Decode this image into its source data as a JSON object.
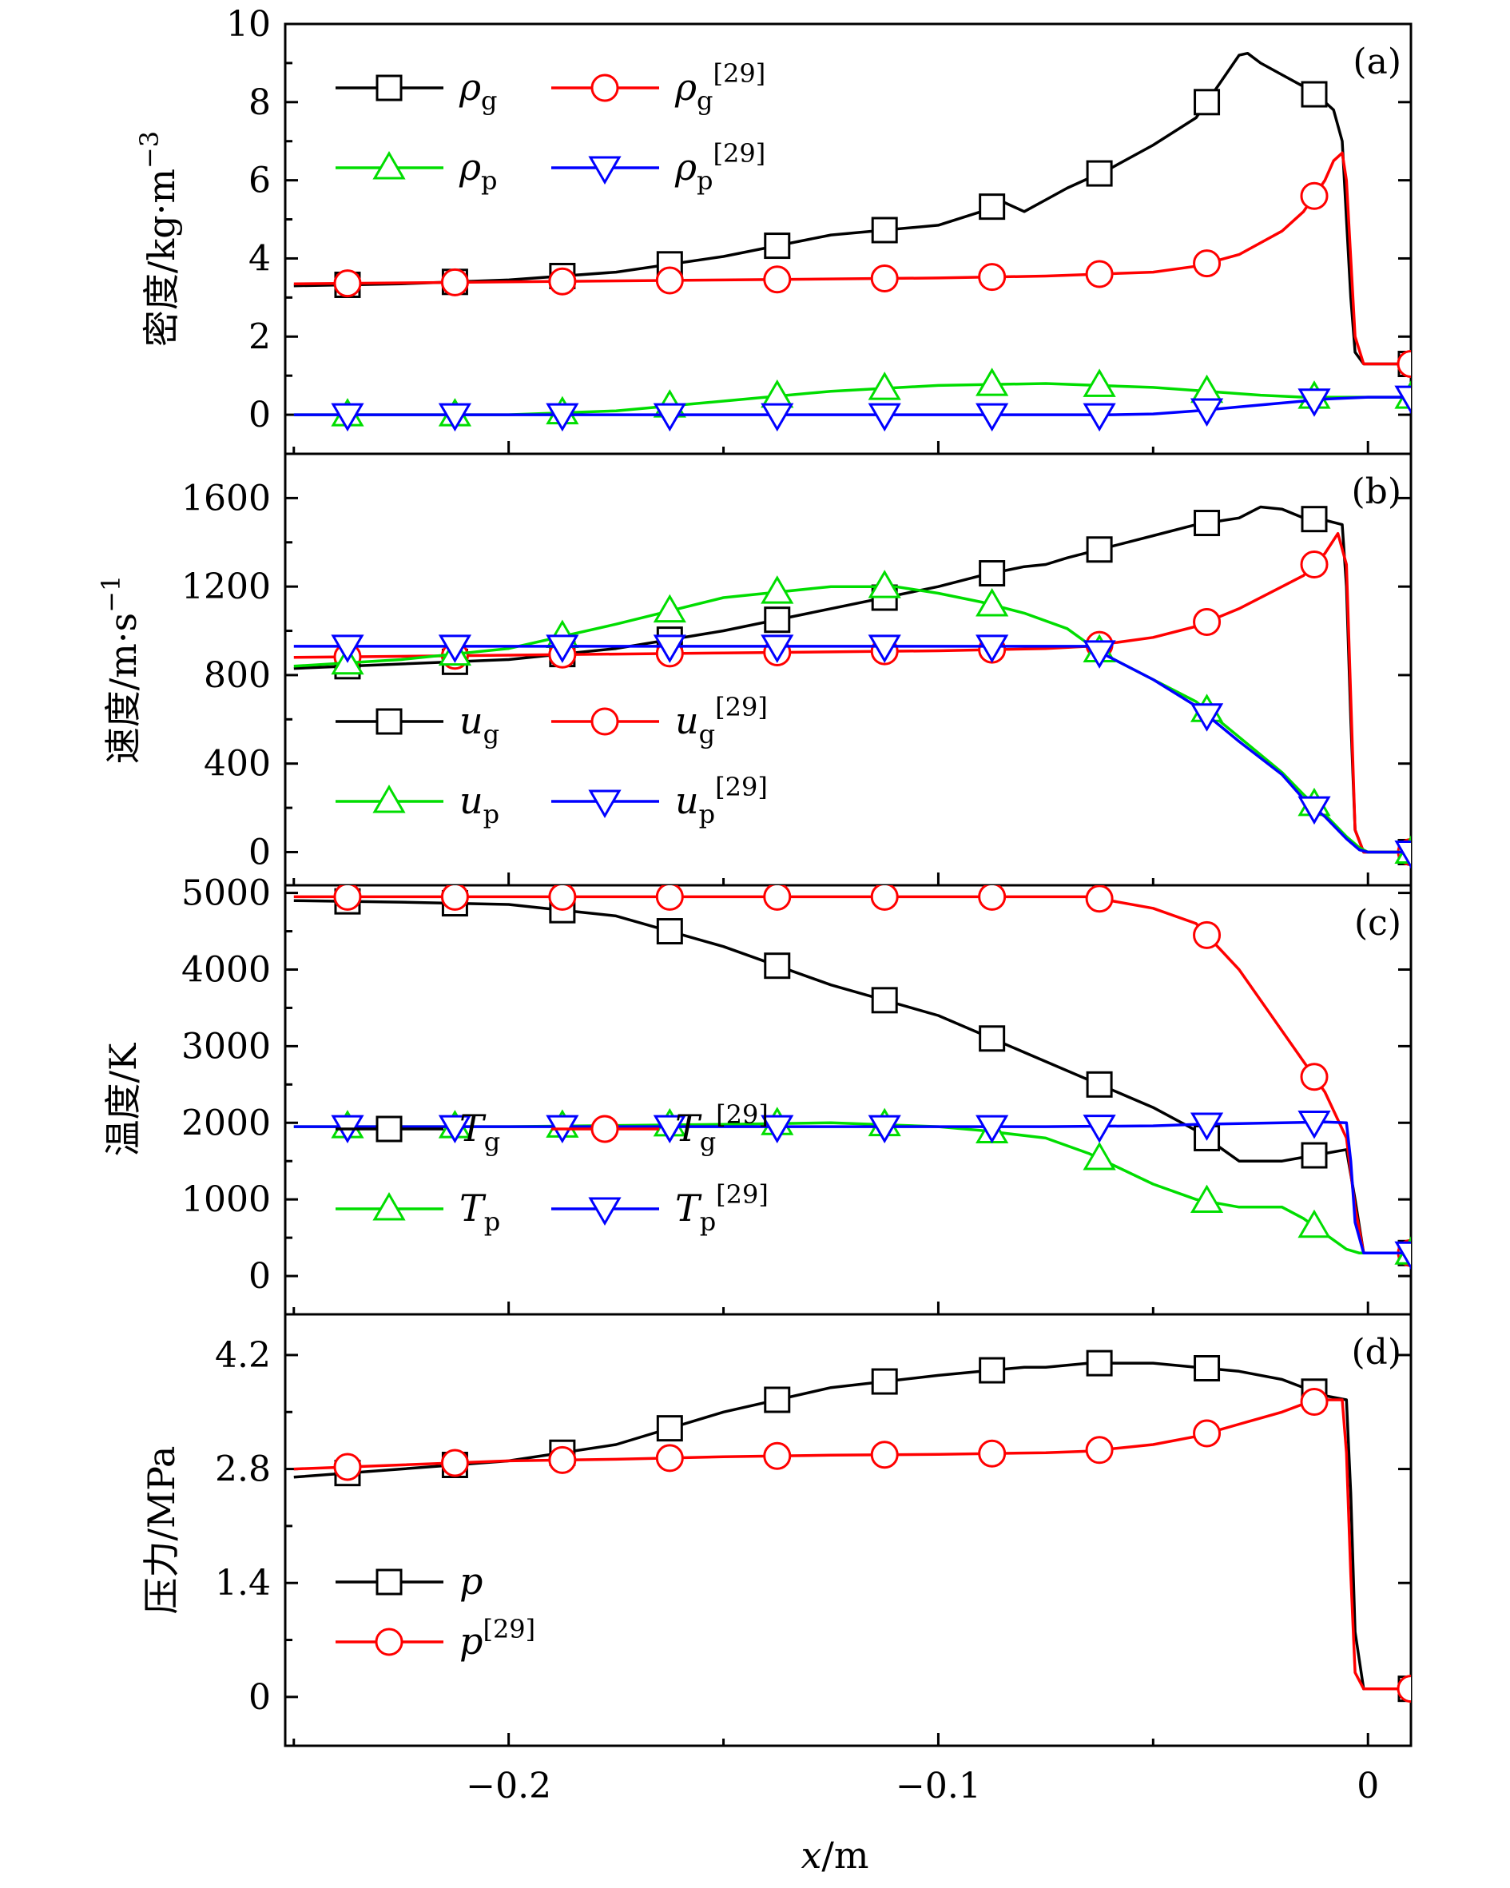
{
  "chart_data": [
    {
      "type": "line",
      "panel_label": "(a)",
      "ylabel": "密度/kg·m",
      "ylabel_exponent": "−3",
      "ylim": [
        -1,
        10
      ],
      "yticks": [
        0,
        2,
        4,
        6,
        8,
        10
      ],
      "ytick_labels": [
        "0",
        "2",
        "4",
        "6",
        "8",
        "10"
      ],
      "legend": {
        "placement": "top-left",
        "columns": 2
      },
      "series": [
        {
          "name": "ρ",
          "subscript": "g",
          "superscript": "",
          "color": "#000000",
          "marker": "square",
          "x": [
            -0.25,
            -0.225,
            -0.2,
            -0.175,
            -0.15,
            -0.125,
            -0.1,
            -0.09,
            -0.085,
            -0.08,
            -0.075,
            -0.07,
            -0.06,
            -0.05,
            -0.04,
            -0.035,
            -0.03,
            -0.028,
            -0.025,
            -0.02,
            -0.015,
            -0.01,
            -0.008,
            -0.006,
            -0.005,
            -0.004,
            -0.003,
            -0.001,
            0,
            0.01
          ],
          "y": [
            3.3,
            3.35,
            3.45,
            3.65,
            4.05,
            4.6,
            4.85,
            5.2,
            5.45,
            5.2,
            5.5,
            5.8,
            6.3,
            6.9,
            7.6,
            8.4,
            9.2,
            9.25,
            9.0,
            8.7,
            8.4,
            8.0,
            7.8,
            7.0,
            5.0,
            3.0,
            1.6,
            1.3,
            1.3,
            1.3
          ]
        },
        {
          "name": "ρ",
          "subscript": "g",
          "superscript": "[29]",
          "color": "#ff0000",
          "marker": "circle",
          "x": [
            -0.25,
            -0.2,
            -0.15,
            -0.1,
            -0.075,
            -0.05,
            -0.04,
            -0.03,
            -0.02,
            -0.015,
            -0.01,
            -0.008,
            -0.006,
            -0.005,
            -0.004,
            -0.003,
            -0.001,
            0,
            0.01
          ],
          "y": [
            3.35,
            3.4,
            3.45,
            3.5,
            3.55,
            3.65,
            3.8,
            4.1,
            4.7,
            5.2,
            6.0,
            6.5,
            6.7,
            6.0,
            4.0,
            2.0,
            1.3,
            1.3,
            1.3
          ]
        },
        {
          "name": "ρ",
          "subscript": "p",
          "superscript": "",
          "color": "#00dd00",
          "marker": "triangle-up",
          "x": [
            -0.25,
            -0.2,
            -0.175,
            -0.15,
            -0.125,
            -0.1,
            -0.075,
            -0.05,
            -0.025,
            -0.015,
            0,
            0.01
          ],
          "y": [
            0,
            0,
            0.1,
            0.35,
            0.6,
            0.75,
            0.8,
            0.7,
            0.5,
            0.45,
            0.45,
            0.45
          ]
        },
        {
          "name": "ρ",
          "subscript": "p",
          "superscript": "[29]",
          "color": "#0000ff",
          "marker": "triangle-down",
          "x": [
            -0.25,
            -0.2,
            -0.15,
            -0.1,
            -0.075,
            -0.06,
            -0.05,
            -0.04,
            -0.03,
            -0.02,
            -0.01,
            0,
            0.01
          ],
          "y": [
            0,
            0,
            0,
            0,
            0,
            0,
            0.02,
            0.1,
            0.2,
            0.3,
            0.4,
            0.45,
            0.45
          ]
        }
      ]
    },
    {
      "type": "line",
      "panel_label": "(b)",
      "ylabel": "速度/m·s",
      "ylabel_exponent": "−1",
      "ylim": [
        -150,
        1800
      ],
      "yticks": [
        0,
        400,
        800,
        1200,
        1600
      ],
      "ytick_labels": [
        "0",
        "400",
        "800",
        "1200",
        "1600"
      ],
      "legend": {
        "placement": "bottom-left",
        "columns": 2
      },
      "series": [
        {
          "name": "u",
          "subscript": "g",
          "superscript": "",
          "color": "#000000",
          "marker": "square",
          "x": [
            -0.25,
            -0.2,
            -0.175,
            -0.15,
            -0.125,
            -0.1,
            -0.09,
            -0.08,
            -0.075,
            -0.07,
            -0.06,
            -0.05,
            -0.04,
            -0.03,
            -0.025,
            -0.02,
            -0.015,
            -0.01,
            -0.006,
            -0.005,
            -0.004,
            -0.003,
            -0.001,
            0,
            0.01
          ],
          "y": [
            830,
            870,
            920,
            1000,
            1100,
            1200,
            1250,
            1290,
            1300,
            1330,
            1380,
            1430,
            1480,
            1510,
            1560,
            1550,
            1510,
            1500,
            1480,
            1200,
            600,
            100,
            0,
            0,
            0
          ]
        },
        {
          "name": "u",
          "subscript": "g",
          "superscript": "[29]",
          "color": "#ff0000",
          "marker": "circle",
          "x": [
            -0.25,
            -0.2,
            -0.15,
            -0.1,
            -0.075,
            -0.065,
            -0.05,
            -0.04,
            -0.03,
            -0.02,
            -0.015,
            -0.01,
            -0.007,
            -0.005,
            -0.004,
            -0.003,
            -0.001,
            0,
            0.01
          ],
          "y": [
            880,
            890,
            900,
            910,
            920,
            930,
            970,
            1020,
            1100,
            1200,
            1250,
            1350,
            1440,
            1300,
            700,
            100,
            0,
            0,
            0
          ]
        },
        {
          "name": "u",
          "subscript": "p",
          "superscript": "",
          "color": "#00dd00",
          "marker": "triangle-up",
          "x": [
            -0.25,
            -0.225,
            -0.2,
            -0.175,
            -0.15,
            -0.125,
            -0.11,
            -0.1,
            -0.09,
            -0.08,
            -0.07,
            -0.065,
            -0.06,
            -0.05,
            -0.04,
            -0.03,
            -0.02,
            -0.015,
            -0.01,
            -0.005,
            -0.002,
            0,
            0.01
          ],
          "y": [
            840,
            870,
            920,
            1030,
            1150,
            1200,
            1200,
            1170,
            1130,
            1080,
            1010,
            940,
            880,
            780,
            680,
            520,
            360,
            260,
            170,
            70,
            20,
            0,
            0
          ]
        },
        {
          "name": "u",
          "subscript": "p",
          "superscript": "[29]",
          "color": "#0000ff",
          "marker": "triangle-down",
          "x": [
            -0.25,
            -0.2,
            -0.15,
            -0.1,
            -0.075,
            -0.065,
            -0.06,
            -0.05,
            -0.04,
            -0.03,
            -0.02,
            -0.015,
            -0.01,
            -0.005,
            -0.002,
            0,
            0.01
          ],
          "y": [
            930,
            930,
            930,
            930,
            930,
            930,
            880,
            780,
            660,
            500,
            350,
            240,
            160,
            60,
            10,
            0,
            0
          ]
        }
      ]
    },
    {
      "type": "line",
      "panel_label": "(c)",
      "ylabel": "温度/K",
      "ylabel_exponent": "",
      "ylim": [
        -500,
        5100
      ],
      "yticks": [
        0,
        1000,
        2000,
        3000,
        4000,
        5000
      ],
      "ytick_labels": [
        "0",
        "1000",
        "2000",
        "3000",
        "4000",
        "5000"
      ],
      "legend": {
        "placement": "bottom-left",
        "columns": 2
      },
      "series": [
        {
          "name": "T",
          "subscript": "g",
          "superscript": "",
          "color": "#000000",
          "marker": "square",
          "x": [
            -0.25,
            -0.225,
            -0.2,
            -0.175,
            -0.15,
            -0.125,
            -0.1,
            -0.075,
            -0.05,
            -0.04,
            -0.03,
            -0.025,
            -0.02,
            -0.015,
            -0.01,
            -0.005,
            -0.003,
            -0.001,
            0,
            0.01
          ],
          "y": [
            4900,
            4880,
            4850,
            4700,
            4300,
            3800,
            3400,
            2800,
            2200,
            1900,
            1500,
            1500,
            1500,
            1550,
            1600,
            1650,
            1000,
            300,
            300,
            300
          ]
        },
        {
          "name": "T",
          "subscript": "g",
          "superscript": "[29]",
          "color": "#ff0000",
          "marker": "circle",
          "x": [
            -0.25,
            -0.2,
            -0.15,
            -0.1,
            -0.075,
            -0.065,
            -0.05,
            -0.04,
            -0.03,
            -0.02,
            -0.015,
            -0.01,
            -0.005,
            -0.003,
            -0.001,
            0,
            0.01
          ],
          "y": [
            4950,
            4950,
            4950,
            4950,
            4950,
            4950,
            4800,
            4600,
            4000,
            3200,
            2800,
            2400,
            1800,
            900,
            300,
            300,
            300
          ]
        },
        {
          "name": "T",
          "subscript": "p",
          "superscript": "",
          "color": "#00dd00",
          "marker": "triangle-up",
          "x": [
            -0.25,
            -0.2,
            -0.15,
            -0.125,
            -0.1,
            -0.09,
            -0.075,
            -0.065,
            -0.05,
            -0.04,
            -0.03,
            -0.02,
            -0.015,
            -0.01,
            -0.005,
            -0.002,
            0,
            0.01
          ],
          "y": [
            1950,
            1950,
            1980,
            2000,
            1950,
            1900,
            1800,
            1600,
            1200,
            1000,
            900,
            900,
            750,
            550,
            350,
            300,
            300,
            300
          ]
        },
        {
          "name": "T",
          "subscript": "p",
          "superscript": "[29]",
          "color": "#0000ff",
          "marker": "triangle-down",
          "x": [
            -0.25,
            -0.2,
            -0.15,
            -0.125,
            -0.1,
            -0.075,
            -0.05,
            -0.04,
            -0.02,
            -0.01,
            -0.005,
            -0.004,
            -0.003,
            -0.001,
            0,
            0.01
          ],
          "y": [
            1950,
            1950,
            1950,
            1950,
            1950,
            1950,
            1960,
            1980,
            2000,
            2010,
            2000,
            1500,
            700,
            300,
            300,
            300
          ]
        }
      ]
    },
    {
      "type": "line",
      "panel_label": "(d)",
      "ylabel": "压力/MPa",
      "ylabel_exponent": "",
      "ylim": [
        -0.6,
        4.7
      ],
      "yticks": [
        0,
        1.4,
        2.8,
        4.2
      ],
      "ytick_labels": [
        "0",
        "1.4",
        "2.8",
        "4.2"
      ],
      "legend": {
        "placement": "bottom-left",
        "columns": 1
      },
      "series": [
        {
          "name": "p",
          "subscript": "",
          "superscript": "",
          "color": "#000000",
          "marker": "square",
          "x": [
            -0.25,
            -0.225,
            -0.2,
            -0.175,
            -0.15,
            -0.125,
            -0.1,
            -0.09,
            -0.08,
            -0.075,
            -0.065,
            -0.05,
            -0.04,
            -0.03,
            -0.02,
            -0.015,
            -0.01,
            -0.005,
            -0.004,
            -0.003,
            -0.001,
            0,
            0.01
          ],
          "y": [
            2.7,
            2.8,
            2.9,
            3.1,
            3.5,
            3.8,
            3.95,
            4.0,
            4.05,
            4.05,
            4.1,
            4.1,
            4.05,
            4.0,
            3.9,
            3.8,
            3.7,
            3.65,
            2.5,
            0.8,
            0.1,
            0.1,
            0.1
          ]
        },
        {
          "name": "p",
          "subscript": "",
          "superscript": "[29]",
          "color": "#ff0000",
          "marker": "circle",
          "x": [
            -0.25,
            -0.225,
            -0.2,
            -0.175,
            -0.15,
            -0.125,
            -0.1,
            -0.075,
            -0.065,
            -0.05,
            -0.04,
            -0.03,
            -0.02,
            -0.015,
            -0.01,
            -0.006,
            -0.005,
            -0.004,
            -0.003,
            -0.001,
            0,
            0.01
          ],
          "y": [
            2.8,
            2.85,
            2.9,
            2.92,
            2.95,
            2.97,
            2.98,
            3.0,
            3.02,
            3.1,
            3.2,
            3.35,
            3.5,
            3.6,
            3.65,
            3.65,
            3.0,
            1.5,
            0.3,
            0.1,
            0.1,
            0.1
          ]
        }
      ]
    }
  ],
  "x_axis": {
    "xlim": [
      -0.252,
      0.01
    ],
    "xticks": [
      -0.2,
      -0.1,
      0
    ],
    "xtick_labels": [
      "−0.2",
      "−0.1",
      "0"
    ],
    "xlabel": "x/m",
    "minor_xticks": [
      -0.25,
      -0.15,
      -0.05
    ]
  }
}
